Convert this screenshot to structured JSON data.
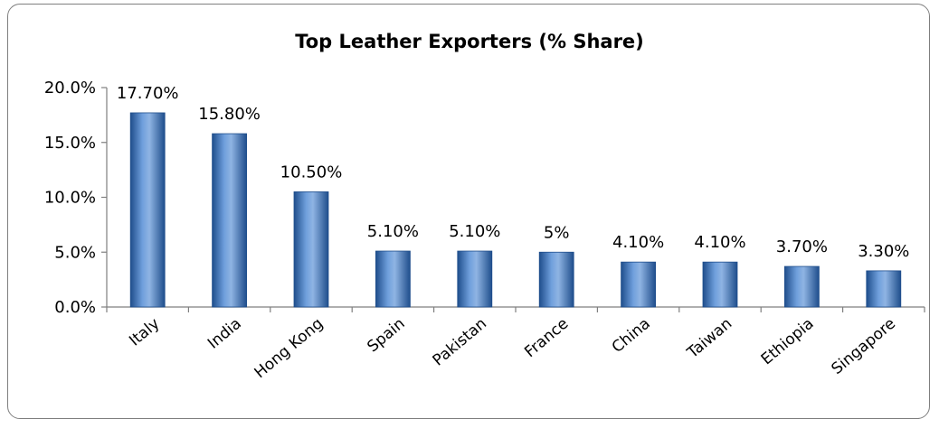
{
  "chart_data": {
    "type": "bar",
    "title": "Top Leather Exporters (% Share)",
    "categories": [
      "Italy",
      "India",
      "Hong Kong",
      "Spain",
      "Pakistan",
      "France",
      "China",
      "Taiwan",
      "Ethiopia",
      "Singapore"
    ],
    "values": [
      17.7,
      15.8,
      10.5,
      5.1,
      5.1,
      5.0,
      4.1,
      4.1,
      3.7,
      3.3
    ],
    "data_labels": [
      "17.70%",
      "15.80%",
      "10.50%",
      "5.10%",
      "5.10%",
      "5%",
      "4.10%",
      "4.10%",
      "3.70%",
      "3.30%"
    ],
    "ylim": [
      0,
      20
    ],
    "yticks": [
      0,
      5,
      10,
      15,
      20
    ],
    "ytick_labels": [
      "0.0%",
      "5.0%",
      "10.0%",
      "15.0%",
      "20.0%"
    ],
    "xlabel": "",
    "ylabel": "",
    "grid": false,
    "legend": "none",
    "colors": {
      "bar": "#4f81bd",
      "bar_dark": "#1f4e8c",
      "bar_light": "#8fb4e3",
      "frame": "#7f7f7f",
      "axis": "#7f7f7f"
    }
  }
}
